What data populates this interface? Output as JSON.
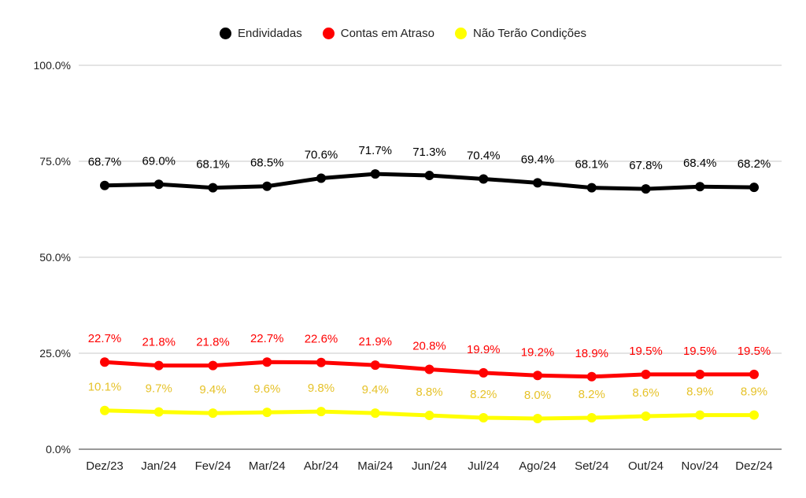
{
  "chart_data": {
    "type": "line",
    "categories": [
      "Dez/23",
      "Jan/24",
      "Fev/24",
      "Mar/24",
      "Abr/24",
      "Mai/24",
      "Jun/24",
      "Jul/24",
      "Ago/24",
      "Set/24",
      "Out/24",
      "Nov/24",
      "Dez/24"
    ],
    "ylim": [
      0,
      100
    ],
    "yticks": [
      0,
      25,
      50,
      75,
      100
    ],
    "ytick_labels": [
      "0.0%",
      "25.0%",
      "50.0%",
      "75.0%",
      "100.0%"
    ],
    "grid": true,
    "legend_position": "top-center",
    "series": [
      {
        "name": "Endividadas",
        "color": "#000000",
        "label_color": "#000000",
        "values": [
          68.7,
          69.0,
          68.1,
          68.5,
          70.6,
          71.7,
          71.3,
          70.4,
          69.4,
          68.1,
          67.8,
          68.4,
          68.2
        ],
        "labels": [
          "68.7%",
          "69.0%",
          "68.1%",
          "68.5%",
          "70.6%",
          "71.7%",
          "71.3%",
          "70.4%",
          "69.4%",
          "68.1%",
          "67.8%",
          "68.4%",
          "68.2%"
        ]
      },
      {
        "name": "Contas em Atraso",
        "color": "#ff0000",
        "label_color": "#ff0000",
        "values": [
          22.7,
          21.8,
          21.8,
          22.7,
          22.6,
          21.9,
          20.8,
          19.9,
          19.2,
          18.9,
          19.5,
          19.5,
          19.5
        ],
        "labels": [
          "22.7%",
          "21.8%",
          "21.8%",
          "22.7%",
          "22.6%",
          "21.9%",
          "20.8%",
          "19.9%",
          "19.2%",
          "18.9%",
          "19.5%",
          "19.5%",
          "19.5%"
        ]
      },
      {
        "name": "Não Terão Condições",
        "color": "#ffff00",
        "label_color": "#e6c229",
        "values": [
          10.1,
          9.7,
          9.4,
          9.6,
          9.8,
          9.4,
          8.8,
          8.2,
          8.0,
          8.2,
          8.6,
          8.9,
          8.9
        ],
        "labels": [
          "10.1%",
          "9.7%",
          "9.4%",
          "9.6%",
          "9.8%",
          "9.4%",
          "8.8%",
          "8.2%",
          "8.0%",
          "8.2%",
          "8.6%",
          "8.9%",
          "8.9%"
        ]
      }
    ]
  }
}
